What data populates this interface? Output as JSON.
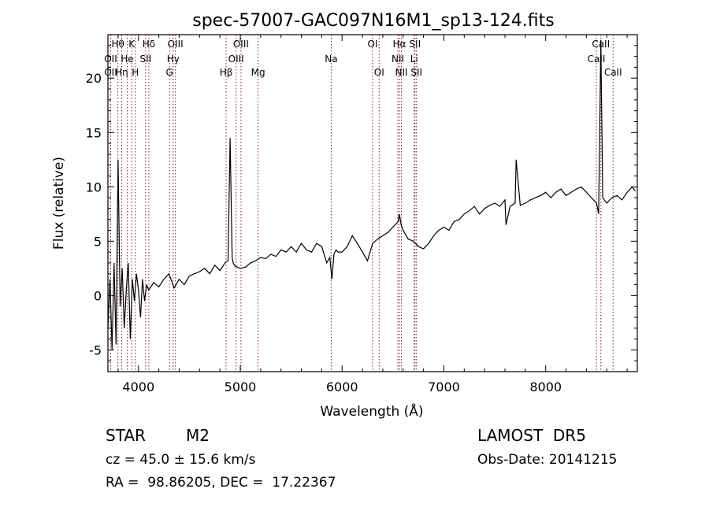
{
  "chart_data": {
    "type": "line",
    "title": "spec-57007-GAC097N16M1_sp13-124.fits",
    "xlabel": "Wavelength (Å)",
    "ylabel": "Flux (relative)",
    "xlim": [
      3700,
      8900
    ],
    "ylim": [
      -7.0,
      24.0
    ],
    "xticks": [
      4000,
      5000,
      6000,
      7000,
      8000
    ],
    "yticks": [
      -5,
      0,
      5,
      10,
      15,
      20
    ],
    "grid": false,
    "line_color": "#000000",
    "marker_color": "#8b1a1a",
    "series": [
      {
        "values_x": [
          3700,
          3720,
          3740,
          3760,
          3780,
          3800,
          3820,
          3840,
          3860,
          3880,
          3900,
          3920,
          3940,
          3960,
          3980,
          4000,
          4020,
          4040,
          4060,
          4080,
          4100,
          4150,
          4200,
          4250,
          4300,
          4350,
          4400,
          4450,
          4500,
          4550,
          4600,
          4650,
          4700,
          4750,
          4800,
          4850,
          4880,
          4900,
          4920,
          4930,
          4950,
          5000,
          5050,
          5100,
          5150,
          5200,
          5250,
          5300,
          5350,
          5400,
          5450,
          5500,
          5550,
          5600,
          5650,
          5700,
          5750,
          5800,
          5850,
          5880,
          5900,
          5920,
          5940,
          5960,
          6000,
          6050,
          6100,
          6150,
          6200,
          6250,
          6300,
          6350,
          6400,
          6450,
          6500,
          6550,
          6563,
          6580,
          6600,
          6650,
          6700,
          6750,
          6800,
          6850,
          6900,
          6950,
          7000,
          7050,
          7100,
          7150,
          7200,
          7250,
          7300,
          7350,
          7400,
          7450,
          7500,
          7550,
          7600,
          7610,
          7650,
          7700,
          7710,
          7750,
          7800,
          7850,
          7900,
          7950,
          8000,
          8050,
          8100,
          8150,
          8200,
          8250,
          8300,
          8350,
          8400,
          8450,
          8500,
          8520,
          8542,
          8560,
          8600,
          8650,
          8700,
          8750,
          8800,
          8850,
          8880
        ],
        "values_y": [
          -3.0,
          1.5,
          -5.0,
          3.0,
          -4.5,
          12.5,
          -1.0,
          2.5,
          -3.0,
          0.5,
          3.0,
          -4.0,
          1.5,
          -0.5,
          2.0,
          0.5,
          -2.0,
          1.5,
          -0.5,
          1.0,
          0.5,
          1.2,
          0.8,
          1.5,
          2.0,
          0.7,
          1.5,
          1.0,
          1.8,
          2.0,
          2.2,
          2.5,
          2.0,
          2.8,
          2.3,
          3.0,
          3.2,
          14.5,
          3.5,
          3.0,
          2.7,
          2.5,
          2.6,
          3.0,
          3.2,
          3.5,
          3.4,
          3.8,
          3.6,
          4.2,
          4.0,
          4.5,
          4.0,
          4.8,
          4.2,
          4.0,
          4.8,
          4.5,
          3.0,
          3.5,
          1.5,
          3.8,
          4.2,
          4.0,
          4.0,
          4.5,
          5.5,
          4.8,
          4.0,
          3.2,
          4.8,
          5.2,
          5.5,
          5.8,
          6.3,
          6.8,
          7.5,
          6.5,
          6.0,
          5.2,
          5.0,
          4.5,
          4.3,
          4.8,
          5.5,
          6.0,
          6.3,
          6.0,
          6.8,
          7.0,
          7.5,
          7.8,
          8.2,
          7.5,
          8.0,
          8.3,
          8.5,
          8.2,
          8.8,
          6.5,
          8.2,
          8.5,
          12.5,
          8.3,
          8.5,
          8.8,
          9.0,
          9.2,
          9.5,
          9.0,
          9.5,
          9.8,
          9.2,
          9.5,
          9.8,
          10.0,
          9.5,
          9.0,
          8.5,
          7.5,
          23.5,
          9.0,
          8.5,
          9.0,
          9.2,
          8.8,
          9.5,
          10.0,
          9.6
        ]
      }
    ],
    "lines": [
      {
        "name": "Hθ",
        "x": 3798,
        "row": 0
      },
      {
        "name": "OII",
        "x": 3727,
        "row": 1
      },
      {
        "name": "OII",
        "x": 3727,
        "row": 2
      },
      {
        "name": "Hη",
        "x": 3835,
        "row": 2
      },
      {
        "name": "K",
        "x": 3934,
        "row": 0
      },
      {
        "name": "He",
        "x": 3889,
        "row": 1
      },
      {
        "name": "H",
        "x": 3969,
        "row": 2
      },
      {
        "name": "Hδ",
        "x": 4102,
        "row": 0
      },
      {
        "name": "SII",
        "x": 4070,
        "row": 1
      },
      {
        "name": "OIII",
        "x": 4363,
        "row": 0
      },
      {
        "name": "Hγ",
        "x": 4341,
        "row": 1
      },
      {
        "name": "G",
        "x": 4305,
        "row": 2
      },
      {
        "name": "OIII",
        "x": 5007,
        "row": 0
      },
      {
        "name": "OIII",
        "x": 4959,
        "row": 1
      },
      {
        "name": "Hβ",
        "x": 4861,
        "row": 2
      },
      {
        "name": "Mg",
        "x": 5175,
        "row": 2
      },
      {
        "name": "Na",
        "x": 5893,
        "row": 1
      },
      {
        "name": "OI",
        "x": 6300,
        "row": 0
      },
      {
        "name": "OI",
        "x": 6364,
        "row": 2
      },
      {
        "name": "Hα",
        "x": 6563,
        "row": 0
      },
      {
        "name": "NII",
        "x": 6548,
        "row": 1
      },
      {
        "name": "NII",
        "x": 6583,
        "row": 2
      },
      {
        "name": "SII",
        "x": 6716,
        "row": 0
      },
      {
        "name": "Li",
        "x": 6708,
        "row": 1
      },
      {
        "name": "SII",
        "x": 6731,
        "row": 2
      },
      {
        "name": "CaII",
        "x": 8542,
        "row": 0
      },
      {
        "name": "CaII",
        "x": 8498,
        "row": 1
      },
      {
        "name": "CaII",
        "x": 8662,
        "row": 2
      }
    ]
  },
  "footer": {
    "object_type": "STAR",
    "subclass": "M2",
    "survey": "LAMOST  DR5",
    "cz": "cz = 45.0 ± 15.6 km/s",
    "obs_date": "Obs-Date: 20141215",
    "coords": "RA =  98.86205, DEC =  17.22367"
  }
}
